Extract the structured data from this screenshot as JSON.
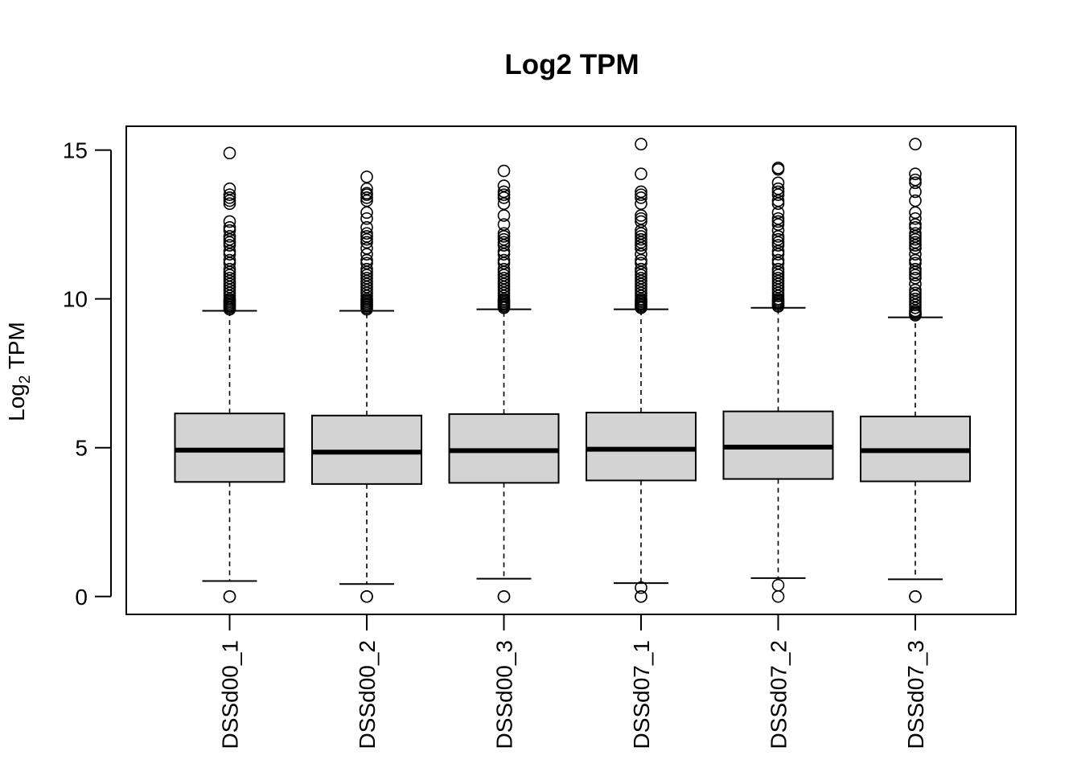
{
  "chart_data": {
    "type": "box",
    "title": "Log2 TPM",
    "ylabel": {
      "main": "Log",
      "subscript": "2",
      "rest": " TPM"
    },
    "ylim": [
      -0.6,
      15.8
    ],
    "yticks": [
      0,
      5,
      10,
      15
    ],
    "box_fill": "#d3d3d3",
    "categories": [
      "DSSd00_1",
      "DSSd00_2",
      "DSSd00_3",
      "DSSd07_1",
      "DSSd07_2",
      "DSSd07_3"
    ],
    "boxes": [
      {
        "name": "DSSd00_1",
        "whisker_low": 0.52,
        "q1": 3.85,
        "median": 4.92,
        "q3": 6.15,
        "whisker_high": 9.6,
        "outliers": [
          0,
          0,
          14.9,
          13.7,
          13.5,
          13.4,
          13.3,
          13.2,
          12.6,
          12.4,
          12.3,
          12.1,
          12.0,
          11.9,
          11.8,
          11.6,
          11.5,
          11.3,
          11.2,
          11.0,
          10.9,
          10.8,
          10.7,
          10.6,
          10.5,
          10.4,
          10.3,
          10.2,
          10.1,
          10.0,
          9.95,
          9.9,
          9.85,
          9.8,
          9.75,
          9.7,
          9.65
        ]
      },
      {
        "name": "DSSd00_2",
        "whisker_low": 0.42,
        "q1": 3.78,
        "median": 4.85,
        "q3": 6.08,
        "whisker_high": 9.6,
        "outliers": [
          0,
          0,
          14.1,
          13.7,
          13.55,
          13.5,
          13.4,
          13.3,
          12.9,
          12.7,
          12.4,
          12.2,
          12.1,
          12.0,
          11.9,
          11.7,
          11.5,
          11.3,
          11.2,
          11.0,
          10.9,
          10.8,
          10.7,
          10.6,
          10.5,
          10.4,
          10.3,
          10.2,
          10.1,
          10.0,
          9.95,
          9.9,
          9.85,
          9.8,
          9.75,
          9.7,
          9.65
        ]
      },
      {
        "name": "DSSd00_3",
        "whisker_low": 0.6,
        "q1": 3.82,
        "median": 4.9,
        "q3": 6.13,
        "whisker_high": 9.65,
        "outliers": [
          0,
          0,
          14.3,
          13.8,
          13.6,
          13.5,
          13.4,
          13.2,
          12.8,
          12.5,
          12.2,
          12.1,
          12.0,
          11.9,
          11.8,
          11.6,
          11.5,
          11.3,
          11.2,
          11.0,
          10.9,
          10.8,
          10.7,
          10.6,
          10.5,
          10.4,
          10.3,
          10.2,
          10.1,
          10.0,
          9.95,
          9.9,
          9.85,
          9.8,
          9.75,
          9.7
        ]
      },
      {
        "name": "DSSd07_1",
        "whisker_low": 0.45,
        "q1": 3.9,
        "median": 4.95,
        "q3": 6.18,
        "whisker_high": 9.65,
        "outliers": [
          0,
          0,
          0.3,
          15.2,
          14.2,
          13.6,
          13.5,
          13.4,
          13.2,
          12.8,
          12.7,
          12.6,
          12.3,
          12.2,
          12.1,
          12.0,
          11.9,
          11.8,
          11.7,
          11.5,
          11.3,
          11.2,
          11.0,
          10.9,
          10.8,
          10.7,
          10.6,
          10.5,
          10.4,
          10.3,
          10.2,
          10.1,
          10.0,
          9.95,
          9.9,
          9.85,
          9.8,
          9.75,
          9.7
        ]
      },
      {
        "name": "DSSd07_2",
        "whisker_low": 0.62,
        "q1": 3.95,
        "median": 5.02,
        "q3": 6.22,
        "whisker_high": 9.7,
        "outliers": [
          0,
          0.38,
          14.4,
          14.35,
          13.9,
          13.7,
          13.6,
          13.5,
          13.3,
          13.2,
          12.9,
          12.7,
          12.6,
          12.5,
          12.3,
          12.1,
          12.0,
          11.9,
          11.8,
          11.6,
          11.5,
          11.3,
          11.2,
          11.0,
          10.9,
          10.8,
          10.7,
          10.6,
          10.5,
          10.4,
          10.3,
          10.2,
          10.1,
          10.0,
          9.95,
          9.9,
          9.85,
          9.8,
          9.75
        ]
      },
      {
        "name": "DSSd07_3",
        "whisker_low": 0.58,
        "q1": 3.87,
        "median": 4.9,
        "q3": 6.05,
        "whisker_high": 9.38,
        "outliers": [
          0,
          0,
          15.2,
          14.2,
          14.0,
          13.9,
          13.6,
          13.3,
          12.9,
          12.7,
          12.5,
          12.4,
          12.2,
          12.1,
          12.0,
          11.9,
          11.8,
          11.7,
          11.5,
          11.3,
          11.2,
          11.0,
          10.9,
          10.8,
          10.7,
          10.5,
          10.3,
          10.2,
          10.1,
          10.0,
          9.9,
          9.8,
          9.7,
          9.6,
          9.55,
          9.5,
          9.45
        ]
      }
    ]
  }
}
